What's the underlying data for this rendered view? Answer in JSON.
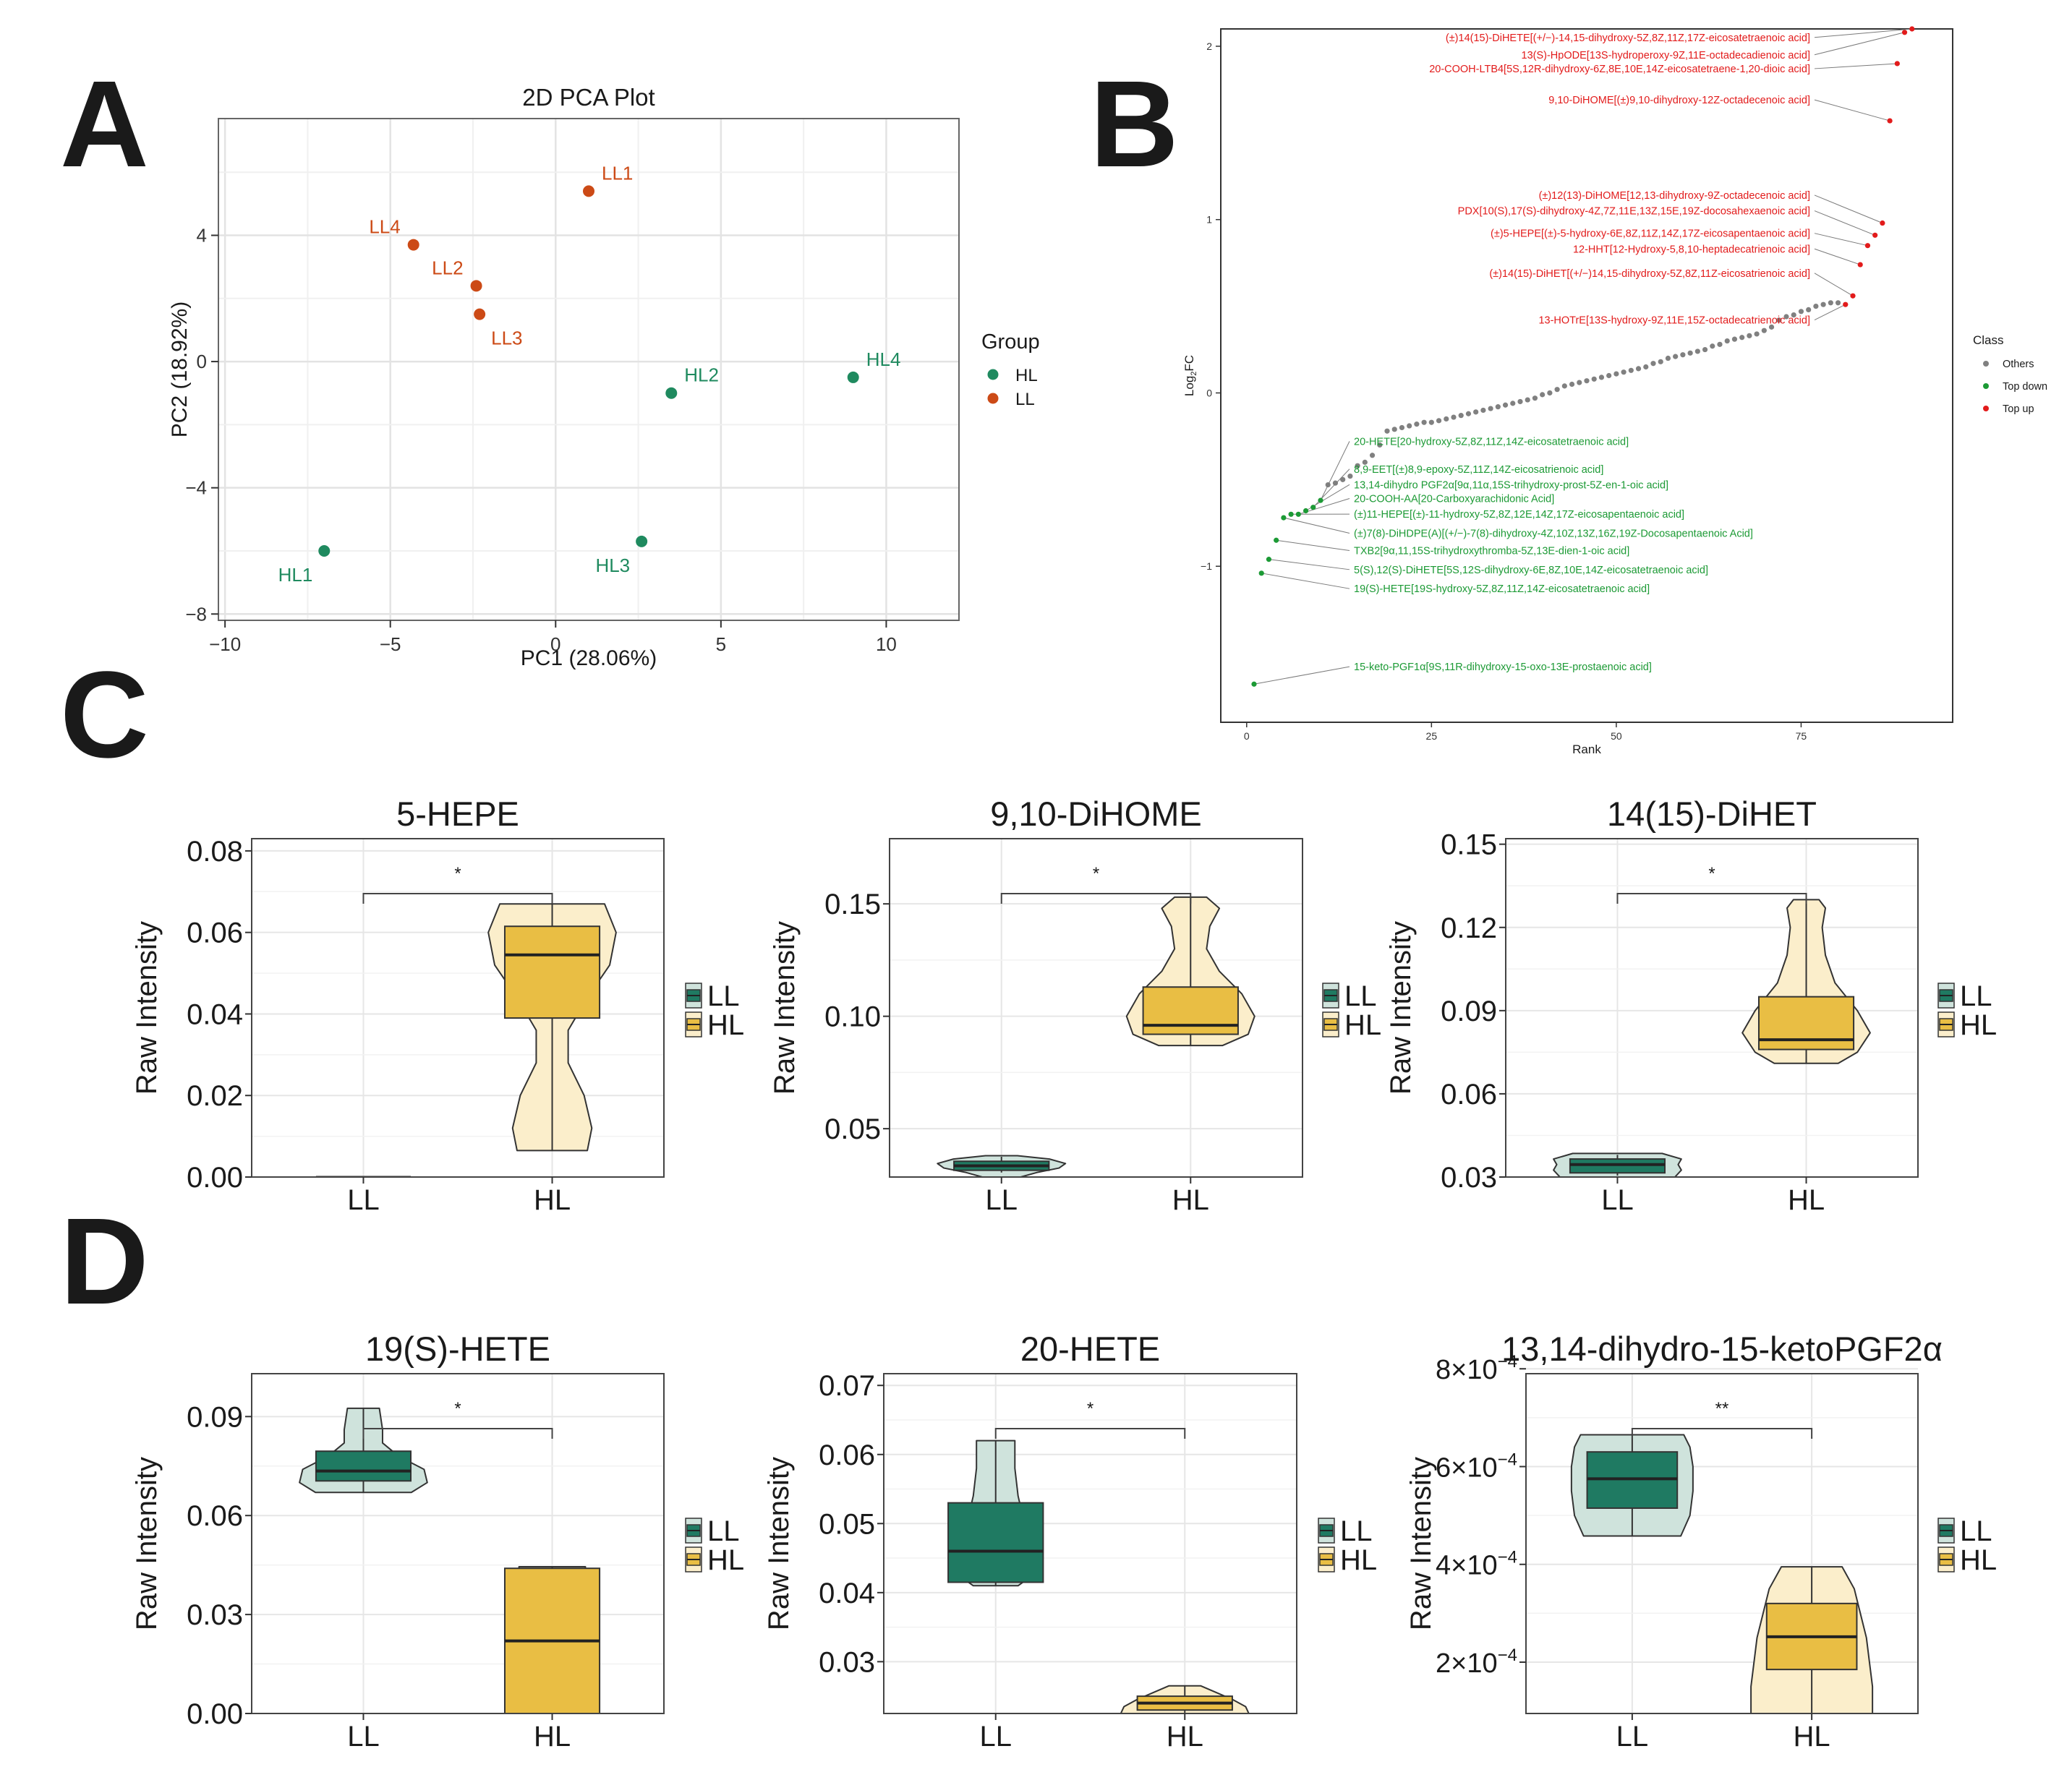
{
  "panel_labels": [
    "A",
    "B",
    "C",
    "D"
  ],
  "colors": {
    "hl": "#1f8a5f",
    "ll": "#cc4a16",
    "box_ll": "#1f7a62",
    "box_hl": "#e9be44",
    "violin_ll": "#cfe3dc",
    "violin_hl": "#fbeecb",
    "top_up": "#e21b1b",
    "top_down": "#1c9a35",
    "others": "#808080"
  },
  "chart_data": [
    {
      "id": "pca",
      "type": "scatter",
      "title": "2D PCA Plot",
      "xlabel": "PC1 (28.06%)",
      "ylabel": "PC2 (18.92%)",
      "xlim": [
        -10.2,
        12.2
      ],
      "ylim": [
        -8.2,
        7.7
      ],
      "xticks": [
        -10,
        -5,
        0,
        5,
        10
      ],
      "xtick_labels": [
        "−10",
        "−5",
        "0",
        "5",
        "10"
      ],
      "yticks": [
        -8,
        -4,
        0,
        4
      ],
      "ytick_labels": [
        "−8",
        "−4",
        "0",
        "4"
      ],
      "legend_title": "Group",
      "legend": [
        {
          "label": "HL",
          "group": "HL"
        },
        {
          "label": "LL",
          "group": "LL"
        }
      ],
      "points": [
        {
          "label": "LL1",
          "x": 1.0,
          "y": 5.4,
          "group": "LL",
          "label_pos": "right"
        },
        {
          "label": "LL4",
          "x": -4.3,
          "y": 3.7,
          "group": "LL",
          "label_pos": "left"
        },
        {
          "label": "LL2",
          "x": -2.4,
          "y": 2.4,
          "group": "LL",
          "label_pos": "left"
        },
        {
          "label": "LL3",
          "x": -2.3,
          "y": 1.5,
          "group": "LL",
          "label_pos": "below-right"
        },
        {
          "label": "HL2",
          "x": 3.5,
          "y": -1.0,
          "group": "HL",
          "label_pos": "right"
        },
        {
          "label": "HL4",
          "x": 9.0,
          "y": -0.5,
          "group": "HL",
          "label_pos": "right"
        },
        {
          "label": "HL1",
          "x": -7.0,
          "y": -6.0,
          "group": "HL",
          "label_pos": "below-left"
        },
        {
          "label": "HL3",
          "x": 2.6,
          "y": -5.7,
          "group": "HL",
          "label_pos": "below-left"
        }
      ]
    },
    {
      "id": "rank",
      "type": "scatter",
      "title": "",
      "xlabel": "Rank",
      "ylabel": "Log2FC",
      "ylabel_main": "Log",
      "ylabel_sub": "2",
      "ylabel_tail": "FC",
      "xlim": [
        -3.5,
        95.5
      ],
      "ylim": [
        -1.9,
        2.1
      ],
      "xticks": [
        0,
        25,
        50,
        75
      ],
      "xtick_labels": [
        "0",
        "25",
        "50",
        "75"
      ],
      "yticks": [
        -1,
        0,
        1,
        2
      ],
      "ytick_labels": [
        "−1",
        "0",
        "1",
        "2"
      ],
      "legend_title": "Class",
      "legend": [
        {
          "label": "Others",
          "cls": "others"
        },
        {
          "label": "Top down",
          "cls": "down"
        },
        {
          "label": "Top up",
          "cls": "up"
        }
      ],
      "others_count": 70,
      "others_start": 11,
      "others_fc": [
        -0.53,
        -0.52,
        -0.5,
        -0.48,
        -0.42,
        -0.4,
        -0.36,
        -0.3,
        -0.22,
        -0.21,
        -0.2,
        -0.19,
        -0.18,
        -0.17,
        -0.17,
        -0.16,
        -0.15,
        -0.14,
        -0.13,
        -0.12,
        -0.11,
        -0.1,
        -0.09,
        -0.08,
        -0.07,
        -0.06,
        -0.05,
        -0.04,
        -0.03,
        -0.01,
        0.0,
        0.02,
        0.04,
        0.05,
        0.06,
        0.07,
        0.08,
        0.09,
        0.1,
        0.11,
        0.12,
        0.13,
        0.14,
        0.15,
        0.17,
        0.18,
        0.2,
        0.21,
        0.22,
        0.23,
        0.24,
        0.25,
        0.27,
        0.28,
        0.3,
        0.31,
        0.32,
        0.33,
        0.34,
        0.36,
        0.38,
        0.42,
        0.44,
        0.45,
        0.47,
        0.48,
        0.5,
        0.51,
        0.52,
        0.52
      ],
      "down": [
        {
          "rank": 1,
          "fc": -1.68,
          "label": "15-keto-PGF1α[9S,11R-dihydroxy-15-oxo-13E-prostaenoic acid]",
          "ly": -1.6
        },
        {
          "rank": 2,
          "fc": -1.04,
          "label": "19(S)-HETE[19S-hydroxy-5Z,8Z,11Z,14Z-eicosatetraenoic acid]",
          "ly": -1.15
        },
        {
          "rank": 3,
          "fc": -0.96,
          "label": "5(S),12(S)-DiHETE[5S,12S-dihydroxy-6E,8Z,10E,14Z-eicosatetraenoic acid]",
          "ly": -1.04
        },
        {
          "rank": 4,
          "fc": -0.85,
          "label": "TXB2[9α,11,15S-trihydroxythromba-5Z,13E-dien-1-oic acid]",
          "ly": -0.93
        },
        {
          "rank": 5,
          "fc": -0.72,
          "label": "(±)7(8)-DiHDPE(A)[(+/−)-7(8)-dihydroxy-4Z,10Z,13Z,16Z,19Z-Docosapentaenoic Acid]",
          "ly": -0.83
        },
        {
          "rank": 6,
          "fc": -0.7,
          "label": "(±)11-HEPE[(±)-11-hydroxy-5Z,8Z,12E,14Z,17Z-eicosapentaenoic acid]",
          "ly": -0.72
        },
        {
          "rank": 7,
          "fc": -0.7,
          "label": "20-COOH-AA[20-Carboxyarachidonic Acid]",
          "ly": -0.63
        },
        {
          "rank": 8,
          "fc": -0.68,
          "label": "13,14-dihydro PGF2α[9α,11α,15S-trihydroxy-prost-5Z-en-1-oic acid]",
          "ly": -0.55
        },
        {
          "rank": 9,
          "fc": -0.66,
          "label": "8,9-EET[(±)8,9-epoxy-5Z,11Z,14Z-eicosatrienoic acid]",
          "ly": -0.46
        },
        {
          "rank": 10,
          "fc": -0.62,
          "label": "20-HETE[20-hydroxy-5Z,8Z,11Z,14Z-eicosatetraenoic acid]",
          "ly": -0.3
        }
      ],
      "up": [
        {
          "rank": 81,
          "fc": 0.51,
          "label": "13-HOTrE[13S-hydroxy-9Z,11E,15Z-octadecatrienoic acid]",
          "ly": 0.4
        },
        {
          "rank": 82,
          "fc": 0.56,
          "label": "(±)14(15)-DiHET[(+/−)14,15-dihydroxy-5Z,8Z,11Z-eicosatrienoic acid]",
          "ly": 0.67
        },
        {
          "rank": 83,
          "fc": 0.74,
          "label": "12-HHT[12-Hydroxy-5,8,10-heptadecatrienoic acid]",
          "ly": 0.81
        },
        {
          "rank": 84,
          "fc": 0.85,
          "label": "(±)5-HEPE[(±)-5-hydroxy-6E,8Z,11Z,14Z,17Z-eicosapentaenoic acid]",
          "ly": 0.9
        },
        {
          "rank": 85,
          "fc": 0.91,
          "label": "PDX[10(S),17(S)-dihydroxy-4Z,7Z,11E,13Z,15E,19Z-docosahexaenoic acid]",
          "ly": 1.03
        },
        {
          "rank": 86,
          "fc": 0.98,
          "label": "(±)12(13)-DiHOME[12,13-dihydroxy-9Z-octadecenoic acid]",
          "ly": 1.12
        },
        {
          "rank": 87,
          "fc": 1.57,
          "label": "9,10-DiHOME[(±)9,10-dihydroxy-12Z-octadecenoic acid]",
          "ly": 1.67
        },
        {
          "rank": 88,
          "fc": 1.9,
          "label": "20-COOH-LTB4[5S,12R-dihydroxy-6Z,8E,10E,14Z-eicosatetraene-1,20-dioic acid]",
          "ly": 1.85
        },
        {
          "rank": 89,
          "fc": 2.08,
          "label": "13(S)-HpODE[13S-hydroperoxy-9Z,11E-octadecadienoic acid]",
          "ly": 1.93
        },
        {
          "rank": 90,
          "fc": 2.1,
          "label": "(±)14(15)-DiHETE[(+/−)-14,15-dihydroxy-5Z,8Z,11Z,17Z-eicosatetraenoic acid]",
          "ly": 2.03
        }
      ]
    },
    {
      "id": "hepe",
      "type": "violin",
      "title": "5-HEPE",
      "ylabel": "Raw Intensity",
      "categories": [
        "LL",
        "HL"
      ],
      "ylim": [
        0,
        0.083
      ],
      "yticks": [
        0,
        0.02,
        0.04,
        0.06,
        0.08
      ],
      "ytick_labels": [
        "0.00",
        "0.02",
        "0.04",
        "0.06",
        "0.08"
      ],
      "significance": "*",
      "legend": [
        "LL",
        "HL"
      ],
      "groups": [
        {
          "name": "LL",
          "min": 0,
          "q1": 0,
          "median": 0,
          "q3": 0,
          "max": 0,
          "violin_y": [
            0,
            0
          ],
          "violin_w": [
            0,
            0
          ]
        },
        {
          "name": "HL",
          "min": 0.0065,
          "q1": 0.039,
          "median": 0.0545,
          "q3": 0.0615,
          "max": 0.067,
          "violin_y": [
            0.0065,
            0.012,
            0.02,
            0.028,
            0.036,
            0.044,
            0.052,
            0.06,
            0.067
          ],
          "violin_w": [
            0.55,
            0.62,
            0.5,
            0.25,
            0.25,
            0.55,
            0.9,
            1.0,
            0.82
          ]
        }
      ]
    },
    {
      "id": "dihome",
      "type": "violin",
      "title": "9,10-DiHOME",
      "ylabel": "Raw Intensity",
      "categories": [
        "LL",
        "HL"
      ],
      "ylim": [
        0.0285,
        0.179
      ],
      "yticks": [
        0.05,
        0.1,
        0.15
      ],
      "ytick_labels": [
        "0.05",
        "0.10",
        "0.15"
      ],
      "significance": "*",
      "legend": [
        "LL",
        "HL"
      ],
      "groups": [
        {
          "name": "LL",
          "min": 0.0305,
          "q1": 0.0315,
          "median": 0.0335,
          "q3": 0.0355,
          "max": 0.0375,
          "violin_y": [
            0.0285,
            0.0305,
            0.0325,
            0.0345,
            0.0365,
            0.038
          ],
          "violin_w": [
            0.3,
            0.55,
            0.9,
            1.0,
            0.75,
            0.25
          ]
        },
        {
          "name": "HL",
          "min": 0.087,
          "q1": 0.092,
          "median": 0.096,
          "q3": 0.113,
          "max": 0.153,
          "violin_y": [
            0.087,
            0.092,
            0.1,
            0.11,
            0.12,
            0.13,
            0.14,
            0.148,
            0.153
          ],
          "violin_w": [
            0.5,
            0.9,
            1.0,
            0.8,
            0.45,
            0.25,
            0.3,
            0.45,
            0.25
          ]
        }
      ]
    },
    {
      "id": "dihet",
      "type": "violin",
      "title": "14(15)-DiHET",
      "ylabel": "Raw Intensity",
      "categories": [
        "LL",
        "HL"
      ],
      "ylim": [
        0.03,
        0.152
      ],
      "yticks": [
        0.03,
        0.06,
        0.09,
        0.12,
        0.15
      ],
      "ytick_labels": [
        "0.03",
        "0.06",
        "0.09",
        "0.12",
        "0.15"
      ],
      "significance": "*",
      "legend": [
        "LL",
        "HL"
      ],
      "groups": [
        {
          "name": "LL",
          "min": 0.0305,
          "q1": 0.0315,
          "median": 0.0345,
          "q3": 0.0365,
          "max": 0.038,
          "violin_y": [
            0.03,
            0.0325,
            0.0345,
            0.0365,
            0.0385
          ],
          "violin_w": [
            0.9,
            1.0,
            0.95,
            1.0,
            0.7
          ]
        },
        {
          "name": "HL",
          "min": 0.071,
          "q1": 0.076,
          "median": 0.0795,
          "q3": 0.095,
          "max": 0.13,
          "violin_y": [
            0.071,
            0.075,
            0.082,
            0.09,
            0.1,
            0.11,
            0.12,
            0.127,
            0.13
          ],
          "violin_w": [
            0.5,
            0.8,
            1.0,
            0.8,
            0.45,
            0.3,
            0.25,
            0.3,
            0.2
          ]
        }
      ]
    },
    {
      "id": "hete19",
      "type": "violin",
      "title": "19(S)-HETE",
      "ylabel": "Raw Intensity",
      "categories": [
        "LL",
        "HL"
      ],
      "ylim": [
        0,
        0.103
      ],
      "yticks": [
        0,
        0.03,
        0.06,
        0.09
      ],
      "ytick_labels": [
        "0.00",
        "0.03",
        "0.06",
        "0.09"
      ],
      "significance": "*",
      "legend": [
        "LL",
        "HL"
      ],
      "groups": [
        {
          "name": "LL",
          "min": 0.067,
          "q1": 0.0705,
          "median": 0.0735,
          "q3": 0.0795,
          "max": 0.0925,
          "violin_y": [
            0.067,
            0.07,
            0.074,
            0.078,
            0.082,
            0.086,
            0.0925
          ],
          "violin_w": [
            0.75,
            1.0,
            0.95,
            0.55,
            0.3,
            0.3,
            0.25
          ]
        },
        {
          "name": "HL",
          "min": 0,
          "q1": 0,
          "median": 0.022,
          "q3": 0.044,
          "max": 0.0445,
          "violin_y": [
            0,
            0.01,
            0.022,
            0.035,
            0.0445
          ],
          "violin_w": [
            0.52,
            0.5,
            0.45,
            0.5,
            0.52
          ]
        }
      ]
    },
    {
      "id": "hete20",
      "type": "violin",
      "title": "20-HETE",
      "ylabel": "Raw Intensity",
      "categories": [
        "LL",
        "HL"
      ],
      "ylim": [
        0.0225,
        0.0717
      ],
      "yticks": [
        0.03,
        0.04,
        0.05,
        0.06,
        0.07
      ],
      "ytick_labels": [
        "0.03",
        "0.04",
        "0.05",
        "0.06",
        "0.07"
      ],
      "significance": "*",
      "legend": [
        "LL",
        "HL"
      ],
      "groups": [
        {
          "name": "LL",
          "min": 0.041,
          "q1": 0.0415,
          "median": 0.046,
          "q3": 0.053,
          "max": 0.062,
          "violin_y": [
            0.041,
            0.042,
            0.046,
            0.05,
            0.054,
            0.058,
            0.062
          ],
          "violin_w": [
            0.35,
            0.5,
            0.55,
            0.45,
            0.35,
            0.3,
            0.3
          ]
        },
        {
          "name": "HL",
          "min": 0.0225,
          "q1": 0.023,
          "median": 0.024,
          "q3": 0.025,
          "max": 0.0265,
          "violin_y": [
            0.0225,
            0.0235,
            0.0245,
            0.0255,
            0.0265
          ],
          "violin_w": [
            1.0,
            0.95,
            0.75,
            0.5,
            0.25
          ]
        }
      ]
    },
    {
      "id": "pgf",
      "type": "violin",
      "title": "13,14-dihydro-15-ketoPGF2α",
      "ylabel": "Raw Intensity",
      "categories": [
        "LL",
        "HL"
      ],
      "ylim": [
        9.5e-05,
        0.00079
      ],
      "yticks": [
        0.0002,
        0.0004,
        0.0006,
        0.0008
      ],
      "ytick_base": [
        "2×10",
        "4×10",
        "6×10",
        "8×10"
      ],
      "ytick_exp": "−4",
      "significance": "**",
      "legend": [
        "LL",
        "HL"
      ],
      "groups": [
        {
          "name": "LL",
          "min": 0.000458,
          "q1": 0.000515,
          "median": 0.000575,
          "q3": 0.00063,
          "max": 0.000665,
          "violin_y": [
            0.000458,
            0.0005,
            0.00055,
            0.0006,
            0.00064,
            0.000665
          ],
          "violin_w": [
            0.8,
            0.95,
            1.0,
            1.0,
            0.95,
            0.85
          ]
        },
        {
          "name": "HL",
          "min": 9.5e-05,
          "q1": 0.000185,
          "median": 0.000252,
          "q3": 0.00032,
          "max": 0.000395,
          "violin_y": [
            9.5e-05,
            0.00015,
            0.0002,
            0.00025,
            0.0003,
            0.00035,
            0.000395
          ],
          "violin_w": [
            1.0,
            1.0,
            0.95,
            0.9,
            0.8,
            0.7,
            0.5
          ]
        }
      ]
    }
  ]
}
